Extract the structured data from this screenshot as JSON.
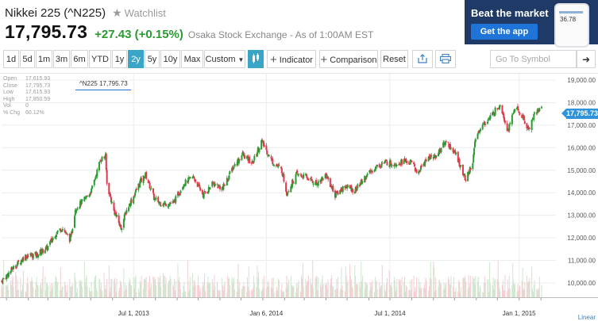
{
  "header": {
    "name": "Nikkei 225 (^N225)",
    "watchlist_label": "Watchlist",
    "price": "17,795.73",
    "change": "+27.43 (+0.15%)",
    "exchange": "Osaka Stock Exchange - As of 1:00AM EST"
  },
  "ad": {
    "title": "Beat the market",
    "button": "Get the app",
    "phone_value": "36.78"
  },
  "toolbar": {
    "ranges": [
      "1d",
      "5d",
      "1m",
      "3m",
      "6m",
      "YTD",
      "1y",
      "2y",
      "5y",
      "10y",
      "Max"
    ],
    "selected_range": "2y",
    "custom_label": "Custom",
    "indicator_label": "Indicator",
    "comparison_label": "Comparison",
    "reset_label": "Reset",
    "symbol_placeholder": "Go To Symbol"
  },
  "ohlc": {
    "tag": "^N225 17,795.73",
    "rows": [
      {
        "label": "Open",
        "value": "17,615.93"
      },
      {
        "label": "Close",
        "value": "17,795.73"
      },
      {
        "label": "Low",
        "value": "17,615.93"
      },
      {
        "label": "High",
        "value": "17,850.59"
      },
      {
        "label": "Vol",
        "value": "0"
      },
      {
        "label": "% Chg",
        "value": "60.12%"
      }
    ]
  },
  "chart_data": {
    "type": "candlestick",
    "y_ticks": [
      "19,000.00",
      "18,000.00",
      "17,000.00",
      "16,000.00",
      "15,000.00",
      "14,000.00",
      "13,000.00",
      "12,000.00",
      "11,000.00",
      "10,000.00"
    ],
    "ylim": [
      10000,
      19000
    ],
    "x_ticks": [
      "Jul 1, 2013",
      "Jan 6, 2014",
      "Jul 1, 2014",
      "Jan 1, 2015"
    ],
    "scale_label": "Linear",
    "last_price": "17,795.73",
    "close_series": [
      {
        "date": "2012-12-25",
        "close": 10080
      },
      {
        "date": "2013-01-10",
        "close": 10650
      },
      {
        "date": "2013-01-28",
        "close": 11200
      },
      {
        "date": "2013-02-12",
        "close": 11250
      },
      {
        "date": "2013-02-28",
        "close": 11560
      },
      {
        "date": "2013-03-12",
        "close": 12200
      },
      {
        "date": "2013-03-21",
        "close": 12450
      },
      {
        "date": "2013-04-02",
        "close": 11900
      },
      {
        "date": "2013-04-09",
        "close": 13300
      },
      {
        "date": "2013-04-22",
        "close": 13700
      },
      {
        "date": "2013-05-02",
        "close": 14100
      },
      {
        "date": "2013-05-15",
        "close": 15500
      },
      {
        "date": "2013-05-22",
        "close": 15600
      },
      {
        "date": "2013-05-24",
        "close": 14400
      },
      {
        "date": "2013-06-03",
        "close": 13200
      },
      {
        "date": "2013-06-13",
        "close": 12450
      },
      {
        "date": "2013-06-21",
        "close": 13230
      },
      {
        "date": "2013-07-01",
        "close": 13850
      },
      {
        "date": "2013-07-10",
        "close": 14470
      },
      {
        "date": "2013-07-18",
        "close": 14800
      },
      {
        "date": "2013-07-31",
        "close": 13700
      },
      {
        "date": "2013-08-12",
        "close": 13500
      },
      {
        "date": "2013-08-27",
        "close": 13550
      },
      {
        "date": "2013-09-10",
        "close": 14400
      },
      {
        "date": "2013-09-24",
        "close": 14700
      },
      {
        "date": "2013-10-08",
        "close": 13900
      },
      {
        "date": "2013-10-22",
        "close": 14400
      },
      {
        "date": "2013-11-05",
        "close": 14200
      },
      {
        "date": "2013-11-19",
        "close": 15100
      },
      {
        "date": "2013-12-03",
        "close": 15700
      },
      {
        "date": "2013-12-17",
        "close": 15300
      },
      {
        "date": "2013-12-30",
        "close": 16290
      },
      {
        "date": "2014-01-14",
        "close": 15400
      },
      {
        "date": "2014-01-28",
        "close": 15000
      },
      {
        "date": "2014-02-04",
        "close": 14000
      },
      {
        "date": "2014-02-18",
        "close": 14800
      },
      {
        "date": "2014-03-04",
        "close": 14700
      },
      {
        "date": "2014-03-18",
        "close": 14400
      },
      {
        "date": "2014-04-01",
        "close": 14800
      },
      {
        "date": "2014-04-14",
        "close": 13900
      },
      {
        "date": "2014-04-28",
        "close": 14300
      },
      {
        "date": "2014-05-12",
        "close": 14100
      },
      {
        "date": "2014-05-26",
        "close": 14650
      },
      {
        "date": "2014-06-09",
        "close": 15100
      },
      {
        "date": "2014-06-23",
        "close": 15350
      },
      {
        "date": "2014-07-07",
        "close": 15300
      },
      {
        "date": "2014-07-21",
        "close": 15400
      },
      {
        "date": "2014-08-04",
        "close": 15300
      },
      {
        "date": "2014-08-08",
        "close": 14800
      },
      {
        "date": "2014-08-22",
        "close": 15500
      },
      {
        "date": "2014-09-05",
        "close": 15650
      },
      {
        "date": "2014-09-19",
        "close": 16300
      },
      {
        "date": "2014-10-03",
        "close": 15700
      },
      {
        "date": "2014-10-17",
        "close": 14550
      },
      {
        "date": "2014-10-27",
        "close": 15400
      },
      {
        "date": "2014-10-31",
        "close": 16400
      },
      {
        "date": "2014-11-07",
        "close": 16900
      },
      {
        "date": "2014-11-21",
        "close": 17350
      },
      {
        "date": "2014-12-05",
        "close": 17950
      },
      {
        "date": "2014-12-10",
        "close": 17400
      },
      {
        "date": "2014-12-16",
        "close": 16750
      },
      {
        "date": "2014-12-26",
        "close": 17800
      },
      {
        "date": "2015-01-05",
        "close": 17400
      },
      {
        "date": "2015-01-14",
        "close": 16800
      },
      {
        "date": "2015-01-23",
        "close": 17500
      },
      {
        "date": "2015-02-02",
        "close": 17800
      }
    ]
  },
  "colors": {
    "up": "#2a9a30",
    "down": "#e0374a",
    "accent": "#3aa5c6",
    "price_flag": "#2e93d8"
  }
}
